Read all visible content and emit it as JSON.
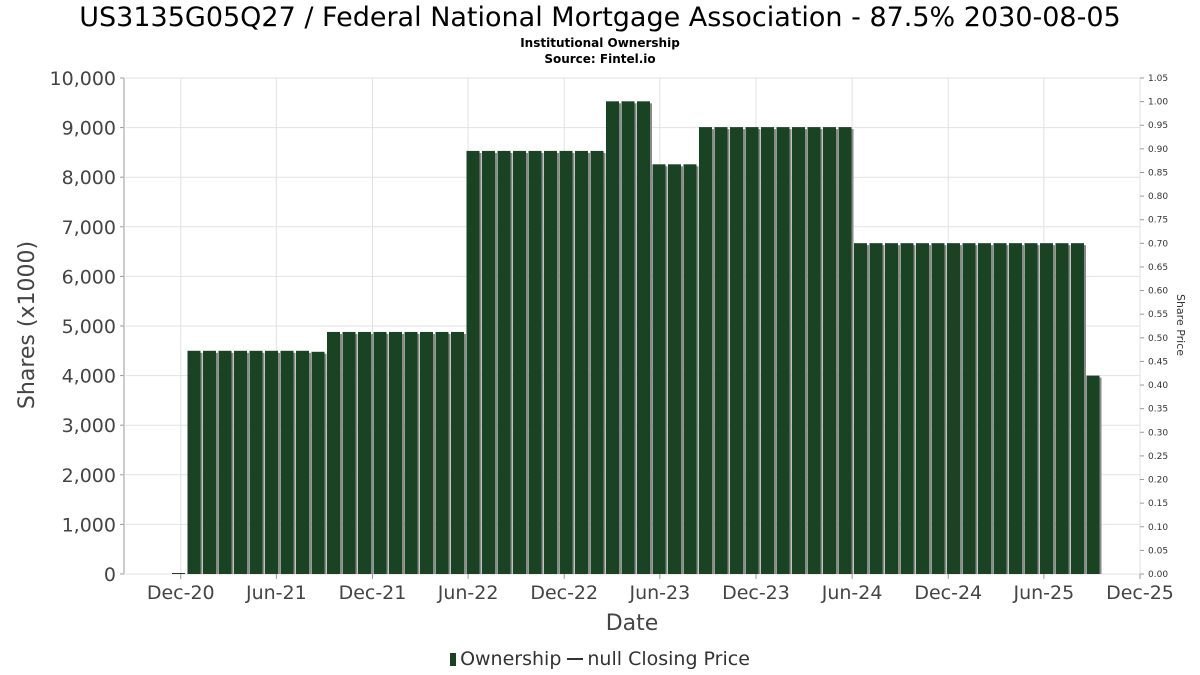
{
  "header": {
    "title": "US3135G05Q27 / Federal National Mortgage Association - 87.5% 2030-08-05",
    "subtitle": "Institutional Ownership",
    "source": "Source: Fintel.io"
  },
  "legend": {
    "ownership": "Ownership",
    "price": "null Closing Price"
  },
  "colors": {
    "bar": "#1a4323",
    "bar_shadow": "#8a8a8a",
    "grid": "#e2e2e2"
  },
  "chart_data": {
    "type": "bar",
    "xlabel": "Date",
    "ylabel": "Shares (x1000)",
    "y2label": "Share Price",
    "ylim": [
      0,
      10000
    ],
    "y2lim": [
      0,
      1.05
    ],
    "xlim": [
      "2020-08-15",
      "2025-12-01"
    ],
    "grid": true,
    "legend_position": "bottom",
    "x_ticks": [
      "Dec-20",
      "Jun-21",
      "Dec-21",
      "Jun-22",
      "Dec-22",
      "Jun-23",
      "Dec-23",
      "Jun-24",
      "Dec-24",
      "Jun-25",
      "Dec-25"
    ],
    "y_ticks": [
      "0",
      "1,000",
      "2,000",
      "3,000",
      "4,000",
      "5,000",
      "6,000",
      "7,000",
      "8,000",
      "9,000",
      "10,000"
    ],
    "y2_ticks": [
      "0.00",
      "0.05",
      "0.10",
      "0.15",
      "0.20",
      "0.25",
      "0.30",
      "0.35",
      "0.40",
      "0.45",
      "0.50",
      "0.55",
      "0.60",
      "0.65",
      "0.70",
      "0.75",
      "0.80",
      "0.85",
      "0.90",
      "0.95",
      "1.00",
      "1.05"
    ],
    "series": [
      {
        "name": "Ownership",
        "values": [
          0,
          4500,
          4500,
          4500,
          4500,
          4500,
          4500,
          4500,
          4500,
          4480,
          4880,
          4880,
          4880,
          4880,
          4880,
          4880,
          4880,
          4880,
          4880,
          8530,
          8530,
          8530,
          8530,
          8530,
          8530,
          8530,
          8530,
          8530,
          9530,
          9530,
          9530,
          8260,
          8260,
          8260,
          9010,
          9010,
          9010,
          9010,
          9010,
          9010,
          9010,
          9010,
          9010,
          9010,
          6670,
          6670,
          6670,
          6670,
          6670,
          6670,
          6670,
          6670,
          6670,
          6670,
          6670,
          6670,
          6670,
          6670,
          6670,
          4000
        ]
      }
    ]
  }
}
